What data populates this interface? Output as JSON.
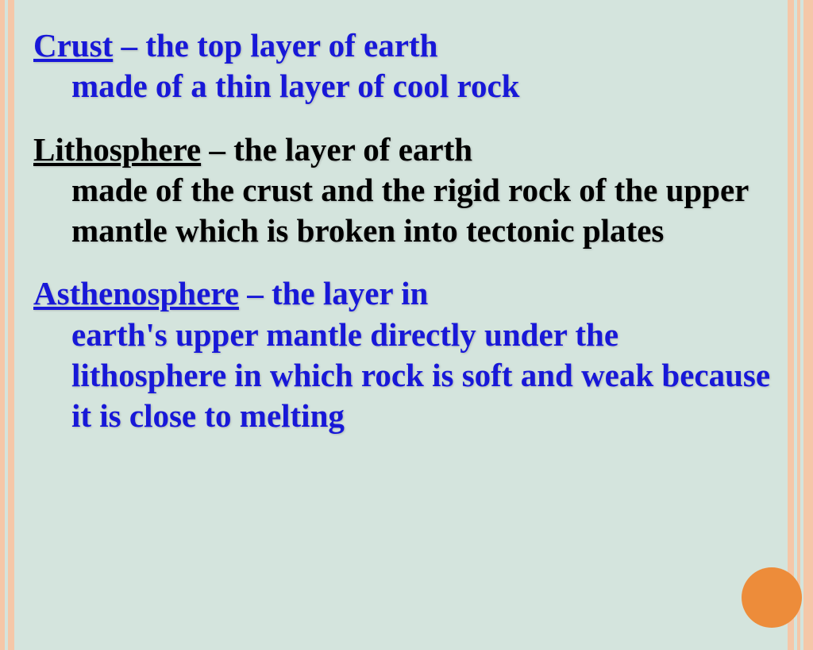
{
  "slide": {
    "background_color": "#d4e4dd",
    "border_color": "#f5c7a8",
    "accent_circle_color": "#ed8c3a",
    "text_shadow": "1px 1px 2px rgba(128,128,128,0.4)",
    "font_family": "Georgia, serif",
    "font_size_pt": 31,
    "font_weight": "bold"
  },
  "definitions": [
    {
      "term": "Crust",
      "separator": " – ",
      "description_line1": "the top layer of earth",
      "description_rest": "made of a thin layer of cool rock",
      "color": "#1818d8"
    },
    {
      "term": "Lithosphere",
      "separator": " – ",
      "description_line1": "the layer of earth",
      "description_rest": "made of the crust and the rigid rock of the upper mantle which is broken into tectonic plates",
      "color": "#000000"
    },
    {
      "term": "Asthenosphere",
      "separator": " – ",
      "description_line1": "the layer in",
      "description_rest": "earth's upper mantle directly under the lithosphere in which rock is soft and weak because it is close to melting",
      "color": "#1818d8"
    }
  ]
}
